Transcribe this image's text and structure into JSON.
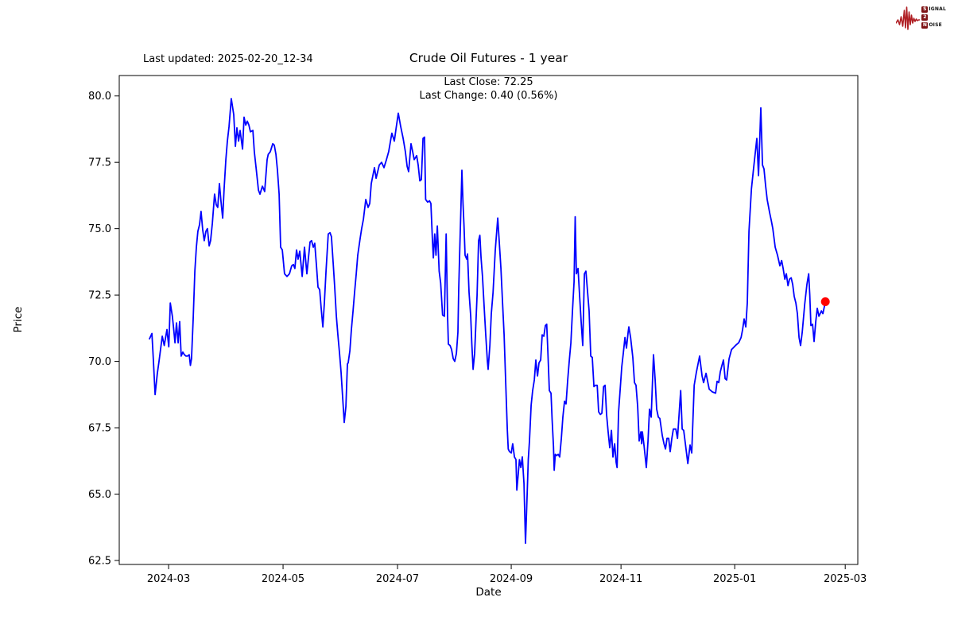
{
  "page": {
    "background": "#ffffff"
  },
  "header": {
    "last_updated": "Last updated: 2025-02-20_12-34",
    "title": "Crude Oil Futures - 1 year",
    "subtitle_line1": "Last Close: 72.25",
    "subtitle_line2": "Last Change: 0.40 (0.56%)"
  },
  "logo": {
    "wave_color": "#b01f24",
    "box_color": "#7f1416",
    "line1_initial": "S",
    "line1_rest": "IGNAL",
    "line2_initial": "2",
    "line2_rest": "",
    "line3_initial": "N",
    "line3_rest": "OISE"
  },
  "chart_data": {
    "type": "line",
    "title": "Crude Oil Futures - 1 year",
    "xlabel": "Date",
    "ylabel": "Price",
    "last_close": 72.25,
    "last_change": "0.40 (0.56%)",
    "line_color": "#0000ff",
    "marker_color": "#ff0000",
    "background": "#ffffff",
    "grid": false,
    "legend": "none",
    "x_unit": "days since 2024-02-20",
    "t0_date": "2024-02-20",
    "end_date": "2025-02-19",
    "xlim": [
      -16.1,
      377.5
    ],
    "ylim": [
      62.35,
      80.77
    ],
    "yticks": [
      {
        "v": 62.5,
        "label": "62.5"
      },
      {
        "v": 65.0,
        "label": "65.0"
      },
      {
        "v": 67.5,
        "label": "67.5"
      },
      {
        "v": 70.0,
        "label": "70.0"
      },
      {
        "v": 72.5,
        "label": "72.5"
      },
      {
        "v": 75.0,
        "label": "75.0"
      },
      {
        "v": 77.5,
        "label": "77.5"
      },
      {
        "v": 80.0,
        "label": "80.0"
      }
    ],
    "xticks": [
      {
        "t": 10.2,
        "label": "2024-03"
      },
      {
        "t": 71.2,
        "label": "2024-05"
      },
      {
        "t": 132.2,
        "label": "2024-07"
      },
      {
        "t": 192.8,
        "label": "2024-09"
      },
      {
        "t": 251.3,
        "label": "2024-11"
      },
      {
        "t": 311.9,
        "label": "2025-01"
      },
      {
        "t": 370.8,
        "label": "2025-03"
      }
    ],
    "points": [
      [
        0,
        70.85
      ],
      [
        1.3,
        71.05
      ],
      [
        2.1,
        70.0
      ],
      [
        3,
        68.75
      ],
      [
        4.2,
        69.55
      ],
      [
        5.1,
        70.0
      ],
      [
        6.8,
        70.95
      ],
      [
        7.9,
        70.6
      ],
      [
        9.3,
        71.2
      ],
      [
        10.3,
        70.55
      ],
      [
        11.1,
        72.2
      ],
      [
        12.2,
        71.7
      ],
      [
        12.8,
        71.3
      ],
      [
        13.6,
        70.7
      ],
      [
        14.4,
        71.45
      ],
      [
        15.3,
        70.7
      ],
      [
        16.1,
        71.5
      ],
      [
        16.9,
        70.2
      ],
      [
        17.8,
        70.35
      ],
      [
        18.6,
        70.25
      ],
      [
        19.5,
        70.2
      ],
      [
        20.3,
        70.2
      ],
      [
        21.2,
        70.25
      ],
      [
        21.8,
        69.85
      ],
      [
        22.4,
        70.1
      ],
      [
        23.3,
        71.6
      ],
      [
        24.2,
        73.4
      ],
      [
        25,
        74.3
      ],
      [
        25.8,
        74.9
      ],
      [
        26.7,
        75.15
      ],
      [
        27.5,
        75.65
      ],
      [
        28.4,
        74.95
      ],
      [
        29.2,
        74.55
      ],
      [
        30.1,
        74.9
      ],
      [
        30.9,
        75.0
      ],
      [
        31.8,
        74.35
      ],
      [
        32.6,
        74.55
      ],
      [
        33.5,
        75.2
      ],
      [
        34.7,
        76.3
      ],
      [
        35.6,
        75.9
      ],
      [
        36.4,
        75.8
      ],
      [
        37.3,
        76.7
      ],
      [
        38.1,
        76.05
      ],
      [
        39,
        75.4
      ],
      [
        39.8,
        76.5
      ],
      [
        40.7,
        77.6
      ],
      [
        41.5,
        78.3
      ],
      [
        42.4,
        78.85
      ],
      [
        43.6,
        79.9
      ],
      [
        44.9,
        79.3
      ],
      [
        45.8,
        78.1
      ],
      [
        46.6,
        78.8
      ],
      [
        47.5,
        78.3
      ],
      [
        48.3,
        78.7
      ],
      [
        49.6,
        78.0
      ],
      [
        50.4,
        79.2
      ],
      [
        51.3,
        78.9
      ],
      [
        52.1,
        79.05
      ],
      [
        53,
        78.9
      ],
      [
        53.8,
        78.65
      ],
      [
        55.1,
        78.7
      ],
      [
        55.9,
        77.9
      ],
      [
        56.8,
        77.3
      ],
      [
        58.1,
        76.45
      ],
      [
        58.9,
        76.3
      ],
      [
        60.2,
        76.6
      ],
      [
        61.4,
        76.4
      ],
      [
        62.7,
        77.6
      ],
      [
        63.3,
        77.8
      ],
      [
        64.4,
        77.9
      ],
      [
        65.7,
        78.2
      ],
      [
        66.5,
        78.15
      ],
      [
        67.4,
        77.8
      ],
      [
        68.2,
        77.2
      ],
      [
        69.1,
        76.3
      ],
      [
        69.9,
        74.3
      ],
      [
        70.8,
        74.2
      ],
      [
        72,
        73.3
      ],
      [
        73.3,
        73.2
      ],
      [
        74.6,
        73.3
      ],
      [
        75.8,
        73.6
      ],
      [
        76.7,
        73.65
      ],
      [
        77.5,
        73.5
      ],
      [
        78.4,
        74.2
      ],
      [
        79.2,
        73.85
      ],
      [
        80.1,
        74.15
      ],
      [
        81.4,
        73.2
      ],
      [
        82.6,
        74.3
      ],
      [
        83.9,
        73.3
      ],
      [
        85.6,
        74.5
      ],
      [
        86.4,
        74.55
      ],
      [
        87.3,
        74.3
      ],
      [
        88.1,
        74.45
      ],
      [
        89,
        73.6
      ],
      [
        89.8,
        72.8
      ],
      [
        90.7,
        72.7
      ],
      [
        91.5,
        72.0
      ],
      [
        92.4,
        71.3
      ],
      [
        93.2,
        72.2
      ],
      [
        94.1,
        73.4
      ],
      [
        95.3,
        74.8
      ],
      [
        96.2,
        74.85
      ],
      [
        97,
        74.7
      ],
      [
        97.9,
        73.7
      ],
      [
        98.7,
        72.8
      ],
      [
        99.6,
        71.7
      ],
      [
        100.4,
        71.0
      ],
      [
        101.3,
        70.3
      ],
      [
        102.1,
        69.6
      ],
      [
        103,
        68.6
      ],
      [
        103.8,
        67.7
      ],
      [
        104.7,
        68.3
      ],
      [
        105.5,
        69.9
      ],
      [
        105.9,
        69.95
      ],
      [
        106.8,
        70.4
      ],
      [
        107.6,
        71.2
      ],
      [
        108.5,
        71.9
      ],
      [
        109.3,
        72.6
      ],
      [
        110.2,
        73.3
      ],
      [
        111,
        74.0
      ],
      [
        112.3,
        74.65
      ],
      [
        113.1,
        75.0
      ],
      [
        114,
        75.35
      ],
      [
        115.3,
        76.1
      ],
      [
        116.5,
        75.8
      ],
      [
        117.4,
        75.95
      ],
      [
        118.2,
        76.7
      ],
      [
        119.9,
        77.3
      ],
      [
        120.8,
        76.9
      ],
      [
        122.5,
        77.4
      ],
      [
        123.7,
        77.5
      ],
      [
        125,
        77.3
      ],
      [
        126.3,
        77.6
      ],
      [
        127.5,
        77.9
      ],
      [
        129.2,
        78.6
      ],
      [
        130.5,
        78.3
      ],
      [
        131.4,
        78.75
      ],
      [
        132.6,
        79.35
      ],
      [
        133.9,
        78.85
      ],
      [
        135.2,
        78.4
      ],
      [
        136.4,
        77.9
      ],
      [
        137.3,
        77.35
      ],
      [
        138.1,
        77.15
      ],
      [
        139.4,
        78.2
      ],
      [
        140.3,
        77.9
      ],
      [
        141.1,
        77.6
      ],
      [
        142.4,
        77.75
      ],
      [
        143.2,
        77.4
      ],
      [
        144.1,
        76.8
      ],
      [
        144.9,
        76.85
      ],
      [
        145.8,
        78.4
      ],
      [
        146.6,
        78.45
      ],
      [
        147.2,
        76.1
      ],
      [
        148.3,
        76.0
      ],
      [
        149.2,
        76.05
      ],
      [
        150,
        75.95
      ],
      [
        150.8,
        74.6
      ],
      [
        151.3,
        73.9
      ],
      [
        152,
        74.8
      ],
      [
        152.7,
        74.0
      ],
      [
        153.4,
        75.1
      ],
      [
        154.4,
        73.4
      ],
      [
        155.2,
        72.95
      ],
      [
        156.2,
        71.75
      ],
      [
        157.2,
        71.7
      ],
      [
        158.1,
        74.8
      ],
      [
        158.9,
        71.7
      ],
      [
        159.3,
        70.65
      ],
      [
        160.2,
        70.6
      ],
      [
        161,
        70.45
      ],
      [
        161.9,
        70.1
      ],
      [
        162.7,
        70.0
      ],
      [
        163.6,
        70.3
      ],
      [
        164.4,
        71.1
      ],
      [
        164.8,
        72.7
      ],
      [
        165.4,
        74.3
      ],
      [
        166,
        75.8
      ],
      [
        166.5,
        77.2
      ],
      [
        167.1,
        75.95
      ],
      [
        167.6,
        75.15
      ],
      [
        168.2,
        74.0
      ],
      [
        169.1,
        73.85
      ],
      [
        169.5,
        74.05
      ],
      [
        170.3,
        72.6
      ],
      [
        171.2,
        71.7
      ],
      [
        171.8,
        70.65
      ],
      [
        172.5,
        69.7
      ],
      [
        173.3,
        70.3
      ],
      [
        173.9,
        71.35
      ],
      [
        174.6,
        72.5
      ],
      [
        175.4,
        74.55
      ],
      [
        176.1,
        74.75
      ],
      [
        176.7,
        73.9
      ],
      [
        177.5,
        73.2
      ],
      [
        178.4,
        72.0
      ],
      [
        179.2,
        71.0
      ],
      [
        180.1,
        70.0
      ],
      [
        180.5,
        69.7
      ],
      [
        181.4,
        70.6
      ],
      [
        182.2,
        71.8
      ],
      [
        183.1,
        72.6
      ],
      [
        184.3,
        74.2
      ],
      [
        185.6,
        75.4
      ],
      [
        186.4,
        74.5
      ],
      [
        187.3,
        73.5
      ],
      [
        188.1,
        72.3
      ],
      [
        189,
        71.0
      ],
      [
        189.8,
        69.3
      ],
      [
        190.7,
        67.45
      ],
      [
        191.2,
        66.7
      ],
      [
        191.9,
        66.6
      ],
      [
        192.8,
        66.55
      ],
      [
        193.6,
        66.9
      ],
      [
        194.5,
        66.4
      ],
      [
        195.3,
        66.3
      ],
      [
        195.8,
        65.15
      ],
      [
        196.6,
        65.8
      ],
      [
        197.2,
        66.3
      ],
      [
        197.9,
        66.0
      ],
      [
        198.7,
        66.4
      ],
      [
        199.6,
        65.4
      ],
      [
        200.4,
        63.15
      ],
      [
        201.3,
        65.0
      ],
      [
        201.9,
        66.3
      ],
      [
        202.5,
        67.0
      ],
      [
        203.4,
        68.35
      ],
      [
        204.2,
        68.9
      ],
      [
        205.1,
        69.3
      ],
      [
        205.9,
        70.05
      ],
      [
        206.8,
        69.45
      ],
      [
        207.6,
        69.95
      ],
      [
        208.5,
        70.05
      ],
      [
        209.3,
        71.0
      ],
      [
        210.2,
        70.95
      ],
      [
        211,
        71.35
      ],
      [
        211.7,
        71.4
      ],
      [
        212.3,
        70.4
      ],
      [
        213.1,
        68.9
      ],
      [
        214,
        68.8
      ],
      [
        214.6,
        67.8
      ],
      [
        215.3,
        66.8
      ],
      [
        215.7,
        65.9
      ],
      [
        216.3,
        66.5
      ],
      [
        217,
        66.45
      ],
      [
        217.8,
        66.5
      ],
      [
        218.6,
        66.4
      ],
      [
        219.5,
        67.1
      ],
      [
        220.3,
        67.9
      ],
      [
        221.2,
        68.5
      ],
      [
        222,
        68.4
      ],
      [
        222.9,
        69.3
      ],
      [
        223.7,
        70.0
      ],
      [
        224.6,
        70.7
      ],
      [
        225.4,
        71.85
      ],
      [
        226.3,
        73.0
      ],
      [
        226.9,
        75.45
      ],
      [
        227.5,
        73.3
      ],
      [
        228.4,
        73.5
      ],
      [
        229.2,
        72.5
      ],
      [
        230.1,
        71.45
      ],
      [
        230.9,
        70.6
      ],
      [
        231.8,
        73.3
      ],
      [
        232.6,
        73.4
      ],
      [
        234.3,
        71.9
      ],
      [
        235.2,
        70.2
      ],
      [
        236,
        70.15
      ],
      [
        236.9,
        69.05
      ],
      [
        237.7,
        69.1
      ],
      [
        238.6,
        69.1
      ],
      [
        239.4,
        68.1
      ],
      [
        240.3,
        68.0
      ],
      [
        241.1,
        68.05
      ],
      [
        242,
        69.05
      ],
      [
        242.8,
        69.1
      ],
      [
        243.6,
        68.0
      ],
      [
        244.5,
        67.3
      ],
      [
        245.3,
        66.75
      ],
      [
        246.2,
        67.4
      ],
      [
        247,
        66.4
      ],
      [
        247.9,
        66.9
      ],
      [
        248.7,
        66.2
      ],
      [
        249.2,
        66.0
      ],
      [
        250,
        68.1
      ],
      [
        250.8,
        68.9
      ],
      [
        251.7,
        69.8
      ],
      [
        252.5,
        70.3
      ],
      [
        253.4,
        70.9
      ],
      [
        254.2,
        70.5
      ],
      [
        255.1,
        71.1
      ],
      [
        255.5,
        71.3
      ],
      [
        256.4,
        70.9
      ],
      [
        257.6,
        70.15
      ],
      [
        258.5,
        69.2
      ],
      [
        259.3,
        69.1
      ],
      [
        260.2,
        68.3
      ],
      [
        261,
        67.0
      ],
      [
        261.9,
        67.35
      ],
      [
        262.3,
        66.9
      ],
      [
        262.7,
        67.35
      ],
      [
        263.6,
        66.8
      ],
      [
        264.8,
        66.0
      ],
      [
        265.7,
        67.0
      ],
      [
        266.5,
        68.2
      ],
      [
        267.4,
        67.9
      ],
      [
        268.6,
        70.25
      ],
      [
        269.5,
        69.3
      ],
      [
        270.3,
        68.2
      ],
      [
        271.2,
        67.9
      ],
      [
        272,
        67.85
      ],
      [
        273.3,
        67.2
      ],
      [
        274.2,
        66.9
      ],
      [
        275,
        66.7
      ],
      [
        275.8,
        67.1
      ],
      [
        276.7,
        67.1
      ],
      [
        277.5,
        66.6
      ],
      [
        278.4,
        67.1
      ],
      [
        279.2,
        67.45
      ],
      [
        280.5,
        67.45
      ],
      [
        281.4,
        67.1
      ],
      [
        283.1,
        68.9
      ],
      [
        283.9,
        67.45
      ],
      [
        284.7,
        67.4
      ],
      [
        285.6,
        66.9
      ],
      [
        286.9,
        66.15
      ],
      [
        288.1,
        66.85
      ],
      [
        289,
        66.55
      ],
      [
        290.3,
        69.1
      ],
      [
        291.5,
        69.6
      ],
      [
        293.2,
        70.2
      ],
      [
        294.5,
        69.45
      ],
      [
        295.3,
        69.2
      ],
      [
        296.6,
        69.55
      ],
      [
        298.3,
        68.95
      ],
      [
        300,
        68.85
      ],
      [
        301.7,
        68.8
      ],
      [
        302.5,
        69.25
      ],
      [
        303.4,
        69.2
      ],
      [
        304.2,
        69.6
      ],
      [
        305.1,
        69.85
      ],
      [
        305.9,
        70.05
      ],
      [
        306.8,
        69.35
      ],
      [
        307.6,
        69.3
      ],
      [
        308.9,
        70.1
      ],
      [
        310.2,
        70.45
      ],
      [
        311,
        70.5
      ],
      [
        312.3,
        70.6
      ],
      [
        313.1,
        70.65
      ],
      [
        314,
        70.7
      ],
      [
        315.3,
        70.9
      ],
      [
        316.1,
        71.2
      ],
      [
        316.9,
        71.6
      ],
      [
        317.8,
        71.3
      ],
      [
        318.6,
        72.2
      ],
      [
        319.5,
        74.9
      ],
      [
        320.8,
        76.5
      ],
      [
        322,
        77.3
      ],
      [
        323.7,
        78.4
      ],
      [
        324.6,
        77.0
      ],
      [
        325.8,
        79.55
      ],
      [
        326.7,
        77.4
      ],
      [
        327.5,
        77.25
      ],
      [
        328.4,
        76.6
      ],
      [
        329.2,
        76.1
      ],
      [
        330.5,
        75.6
      ],
      [
        331.4,
        75.3
      ],
      [
        332.2,
        75.0
      ],
      [
        333.5,
        74.3
      ],
      [
        334.7,
        74.0
      ],
      [
        336,
        73.6
      ],
      [
        336.9,
        73.8
      ],
      [
        337.7,
        73.5
      ],
      [
        338.6,
        73.1
      ],
      [
        339.4,
        73.3
      ],
      [
        340.3,
        72.85
      ],
      [
        341.1,
        73.1
      ],
      [
        342,
        73.15
      ],
      [
        342.8,
        72.9
      ],
      [
        343.6,
        72.45
      ],
      [
        344.5,
        72.2
      ],
      [
        345.3,
        71.8
      ],
      [
        346.2,
        70.9
      ],
      [
        347,
        70.6
      ],
      [
        347.9,
        71.1
      ],
      [
        349.2,
        72.15
      ],
      [
        350.4,
        72.9
      ],
      [
        351.3,
        73.3
      ],
      [
        351.9,
        72.5
      ],
      [
        352.5,
        71.35
      ],
      [
        353.4,
        71.4
      ],
      [
        354.2,
        70.75
      ],
      [
        355.1,
        71.5
      ],
      [
        355.9,
        72.0
      ],
      [
        356.8,
        71.7
      ],
      [
        358.1,
        71.9
      ],
      [
        358.9,
        71.8
      ],
      [
        360.2,
        72.25
      ]
    ]
  },
  "plot_geometry_note": ""
}
